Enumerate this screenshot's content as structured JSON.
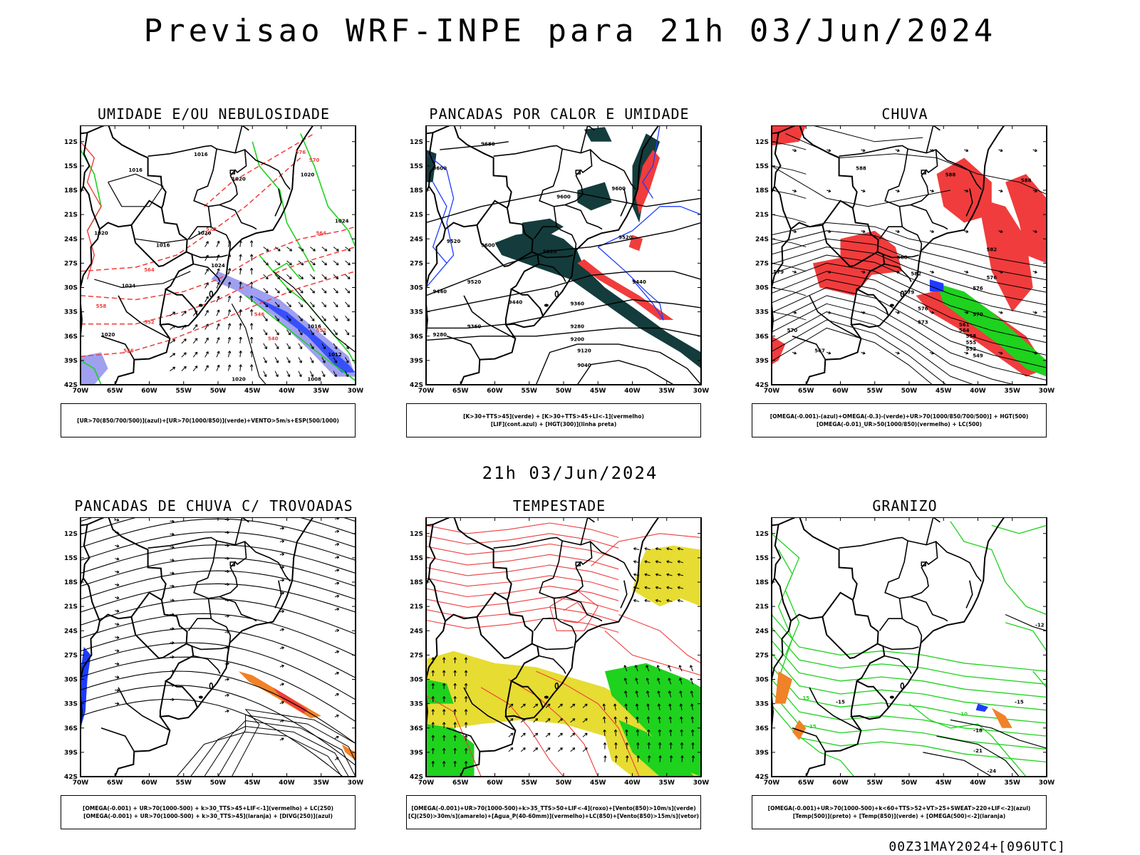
{
  "page": {
    "title": "Previsao WRF-INPE  para 21h 03/Jun/2024",
    "mid_title": "21h 03/Jun/2024",
    "footer": "00Z31MAY2024+[096UTC]"
  },
  "axis": {
    "lat_ticks": [
      "12S",
      "15S",
      "18S",
      "21S",
      "24S",
      "27S",
      "30S",
      "33S",
      "36S",
      "39S",
      "42S"
    ],
    "lon_ticks": [
      "70W",
      "65W",
      "60W",
      "55W",
      "50W",
      "45W",
      "40W",
      "35W",
      "30W"
    ]
  },
  "colors": {
    "red": "#f03c3c",
    "green": "#1ed21e",
    "blue": "#1e3cff",
    "lavender": "#a0a0f0",
    "darkgreen": "#143c3c",
    "yellow": "#e6dc32",
    "orange": "#f08228"
  },
  "panels": [
    {
      "title": "UMIDADE E/OU NEBULOSIDADE",
      "legend": [
        "[UR>70(850/700/500)](azul)+[UR>70(1000/850)](verde)+VENTO>5m/s+ESP(500/1000)"
      ],
      "labels": [
        {
          "text": "1016",
          "lon": -52.5,
          "lat": -13.8,
          "color": "black"
        },
        {
          "text": "1016",
          "lon": -62,
          "lat": -15.7,
          "color": "black"
        },
        {
          "text": "1020",
          "lon": -47,
          "lat": -16.8,
          "color": "black"
        },
        {
          "text": "1020",
          "lon": -37,
          "lat": -16.3,
          "color": "black"
        },
        {
          "text": "1020",
          "lon": -52,
          "lat": -23.5,
          "color": "black"
        },
        {
          "text": "1016",
          "lon": -58,
          "lat": -25,
          "color": "black"
        },
        {
          "text": "1024",
          "lon": -32,
          "lat": -22,
          "color": "black"
        },
        {
          "text": "1024",
          "lon": -50,
          "lat": -27.5,
          "color": "black"
        },
        {
          "text": "1024",
          "lon": -63,
          "lat": -30,
          "color": "black"
        },
        {
          "text": "1020",
          "lon": -67,
          "lat": -23.5,
          "color": "black"
        },
        {
          "text": "1020",
          "lon": -66,
          "lat": -36,
          "color": "black"
        },
        {
          "text": "1016",
          "lon": -36,
          "lat": -35,
          "color": "black"
        },
        {
          "text": "1012",
          "lon": -33,
          "lat": -38.5,
          "color": "black"
        },
        {
          "text": "1020",
          "lon": -47,
          "lat": -41.5,
          "color": "black"
        },
        {
          "text": "1008",
          "lon": -36,
          "lat": -41.5,
          "color": "black"
        },
        {
          "text": "576",
          "lon": -38,
          "lat": -13.5,
          "color": "red"
        },
        {
          "text": "570",
          "lon": -36,
          "lat": -14.5,
          "color": "red"
        },
        {
          "text": "570",
          "lon": -51,
          "lat": -23,
          "color": "red"
        },
        {
          "text": "564",
          "lon": -60,
          "lat": -28,
          "color": "red"
        },
        {
          "text": "564",
          "lon": -35,
          "lat": -23.5,
          "color": "red"
        },
        {
          "text": "558",
          "lon": -67,
          "lat": -32.5,
          "color": "red"
        },
        {
          "text": "552",
          "lon": -60,
          "lat": -34.5,
          "color": "red"
        },
        {
          "text": "546",
          "lon": -63,
          "lat": -38,
          "color": "red"
        },
        {
          "text": "546",
          "lon": -44,
          "lat": -33.5,
          "color": "red"
        },
        {
          "text": "540",
          "lon": -42,
          "lat": -36.5,
          "color": "red"
        },
        {
          "text": "552",
          "lon": -35,
          "lat": -35.5,
          "color": "red"
        }
      ]
    },
    {
      "title": "PANCADAS POR CALOR E UMIDADE",
      "legend": [
        "[K>30+TTS>45](verde) + [K>30+TTS>45+LI<-1](vermelho)",
        "[LIF](cont.azul) + [HGT(300)](linha preta)"
      ],
      "labels": [
        {
          "text": "9680",
          "lon": -61,
          "lat": -12.5,
          "color": "black"
        },
        {
          "text": "9600",
          "lon": -68,
          "lat": -15.5,
          "color": "black"
        },
        {
          "text": "9600",
          "lon": -50,
          "lat": -19,
          "color": "black"
        },
        {
          "text": "9600",
          "lon": -42,
          "lat": -18,
          "color": "black"
        },
        {
          "text": "9520",
          "lon": -66,
          "lat": -24.5,
          "color": "black"
        },
        {
          "text": "9600",
          "lon": -61,
          "lat": -25,
          "color": "black"
        },
        {
          "text": "9520",
          "lon": -52,
          "lat": -25.8,
          "color": "black"
        },
        {
          "text": "9520",
          "lon": -41,
          "lat": -24,
          "color": "black"
        },
        {
          "text": "9520",
          "lon": -63,
          "lat": -29.5,
          "color": "black"
        },
        {
          "text": "9440",
          "lon": -68,
          "lat": -30.7,
          "color": "black"
        },
        {
          "text": "9440",
          "lon": -57,
          "lat": -32,
          "color": "black"
        },
        {
          "text": "9440",
          "lon": -39,
          "lat": -29.5,
          "color": "black"
        },
        {
          "text": "9360",
          "lon": -48,
          "lat": -32.2,
          "color": "black"
        },
        {
          "text": "9360",
          "lon": -63,
          "lat": -35,
          "color": "black"
        },
        {
          "text": "9280",
          "lon": -68,
          "lat": -36,
          "color": "black"
        },
        {
          "text": "9280",
          "lon": -48,
          "lat": -35,
          "color": "black"
        },
        {
          "text": "9200",
          "lon": -48,
          "lat": -36.6,
          "color": "black"
        },
        {
          "text": "9120",
          "lon": -47,
          "lat": -38,
          "color": "black"
        },
        {
          "text": "9040",
          "lon": -47,
          "lat": -39.8,
          "color": "black"
        }
      ]
    },
    {
      "title": "CHUVA",
      "legend": [
        "[OMEGA(-0.001)-(azul)+OMEGA(-0.3)-(verde)+UR>70(1000/850/700/500)] + HGT(500)",
        "[OMEGA(-0.01)_UR>50(1000/850)(vermelho) + LC(500)"
      ],
      "labels": [
        {
          "text": "588",
          "lon": -57,
          "lat": -15.5,
          "color": "black"
        },
        {
          "text": "588",
          "lon": -44,
          "lat": -16.3,
          "color": "black"
        },
        {
          "text": "588",
          "lon": -33,
          "lat": -17,
          "color": "black"
        },
        {
          "text": "588",
          "lon": -51,
          "lat": -26.5,
          "color": "black"
        },
        {
          "text": "582",
          "lon": -49,
          "lat": -28.5,
          "color": "black"
        },
        {
          "text": "582",
          "lon": -38,
          "lat": -25.5,
          "color": "black"
        },
        {
          "text": "579",
          "lon": -69,
          "lat": -28.3,
          "color": "black"
        },
        {
          "text": "579",
          "lon": -50,
          "lat": -30.8,
          "color": "black"
        },
        {
          "text": "576",
          "lon": -38,
          "lat": -29,
          "color": "black"
        },
        {
          "text": "576",
          "lon": -48,
          "lat": -32.8,
          "color": "black"
        },
        {
          "text": "576",
          "lon": -40,
          "lat": -30.3,
          "color": "black"
        },
        {
          "text": "573",
          "lon": -48,
          "lat": -34.5,
          "color": "black"
        },
        {
          "text": "570",
          "lon": -40,
          "lat": -33.5,
          "color": "black"
        },
        {
          "text": "570",
          "lon": -67,
          "lat": -35.5,
          "color": "black"
        },
        {
          "text": "567",
          "lon": -63,
          "lat": -38,
          "color": "black"
        },
        {
          "text": "564",
          "lon": -42,
          "lat": -35.5,
          "color": "black"
        },
        {
          "text": "561",
          "lon": -42,
          "lat": -34.8,
          "color": "black"
        },
        {
          "text": "558",
          "lon": -41,
          "lat": -36.2,
          "color": "black"
        },
        {
          "text": "555",
          "lon": -41,
          "lat": -37,
          "color": "black"
        },
        {
          "text": "552",
          "lon": -41,
          "lat": -37.8,
          "color": "black"
        },
        {
          "text": "549",
          "lon": -40,
          "lat": -38.6,
          "color": "black"
        }
      ]
    },
    {
      "title": "PANCADAS DE CHUVA C/ TROVOADAS",
      "legend": [
        "[OMEGA(-0.001) + UR>70(1000-500) + k>30_TTS>45+LIF<-1](vermelho) + LC(250)",
        "[OMEGA(-0.001) + UR>70(1000-500) + k>30_TTS>45](laranja) + [DIVG(250)](azul)"
      ],
      "labels": []
    },
    {
      "title": "TEMPESTADE",
      "legend": [
        "[OMEGA(-0.001)+UR>70(1000-500)+k>35_TTS>50+LIF<-4](roxo)+[Vento(850)>10m/s](verde)",
        "[CJ(250)>30m/s](amarelo)+[Agua_P(40-60mm)](vermelho)+LC(850)+[Vento(850)>15m/s](vetor)"
      ],
      "labels": []
    },
    {
      "title": "GRANIZO",
      "legend": [
        "[OMEGA(-0.001)+UR>70(1000-500)+k<60+TTS>52+VT>25+SWEAT>220+LIF<-2](azul)",
        "[Temp(500)](preto) + [Temp(850)](verde) + [OMEGA(500)<-2](laranja)"
      ],
      "labels": [
        {
          "text": "-12",
          "lon": -31,
          "lat": -23.5,
          "color": "black"
        },
        {
          "text": "-15",
          "lon": -60,
          "lat": -33,
          "color": "black"
        },
        {
          "text": "-15",
          "lon": -34,
          "lat": -33,
          "color": "black"
        },
        {
          "text": "-18",
          "lon": -40,
          "lat": -36.5,
          "color": "black"
        },
        {
          "text": "-21",
          "lon": -40,
          "lat": -39,
          "color": "black"
        },
        {
          "text": "-24",
          "lon": -38,
          "lat": -41.5,
          "color": "black"
        },
        {
          "text": "15",
          "lon": -65,
          "lat": -32.5,
          "color": "green"
        },
        {
          "text": "15",
          "lon": -64,
          "lat": -36,
          "color": "green"
        },
        {
          "text": "10",
          "lon": -42,
          "lat": -34.5,
          "color": "green"
        }
      ]
    }
  ]
}
